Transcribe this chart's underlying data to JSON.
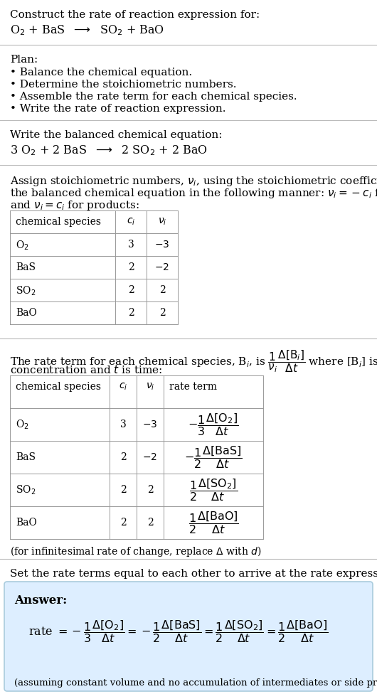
{
  "bg_color": "#ffffff",
  "text_color": "#000000",
  "title_line1": "Construct the rate of reaction expression for:",
  "reaction_unbalanced": "O$_2$ + BaS  $\\longrightarrow$  SO$_2$ + BaO",
  "plan_header": "Plan:",
  "plan_items": [
    "• Balance the chemical equation.",
    "• Determine the stoichiometric numbers.",
    "• Assemble the rate term for each chemical species.",
    "• Write the rate of reaction expression."
  ],
  "balanced_header": "Write the balanced chemical equation:",
  "reaction_balanced": "3 O$_2$ + 2 BaS  $\\longrightarrow$  2 SO$_2$ + 2 BaO",
  "stoich_intro_l1": "Assign stoichiometric numbers, $\\nu_i$, using the stoichiometric coefficients, $c_i$, from",
  "stoich_intro_l2": "the balanced chemical equation in the following manner: $\\nu_i = -c_i$ for reactants",
  "stoich_intro_l3": "and $\\nu_i = c_i$ for products:",
  "table1_headers": [
    "chemical species",
    "$c_i$",
    "$\\nu_i$"
  ],
  "table1_rows": [
    [
      "O$_2$",
      "3",
      "$-3$"
    ],
    [
      "BaS",
      "2",
      "$-2$"
    ],
    [
      "SO$_2$",
      "2",
      "2"
    ],
    [
      "BaO",
      "2",
      "2"
    ]
  ],
  "rate_intro_l1": "The rate term for each chemical species, B$_i$, is $\\dfrac{1}{\\nu_i}\\dfrac{\\Delta[\\mathrm{B}_i]}{\\Delta t}$ where [B$_i$] is the amount",
  "rate_intro_l2": "concentration and $t$ is time:",
  "table2_headers": [
    "chemical species",
    "$c_i$",
    "$\\nu_i$",
    "rate term"
  ],
  "table2_rows": [
    [
      "O$_2$",
      "3",
      "$-3$",
      "$-\\dfrac{1}{3}\\dfrac{\\Delta[\\mathrm{O_2}]}{\\Delta t}$"
    ],
    [
      "BaS",
      "2",
      "$-2$",
      "$-\\dfrac{1}{2}\\dfrac{\\Delta[\\mathrm{BaS}]}{\\Delta t}$"
    ],
    [
      "SO$_2$",
      "2",
      "2",
      "$\\dfrac{1}{2}\\dfrac{\\Delta[\\mathrm{SO_2}]}{\\Delta t}$"
    ],
    [
      "BaO",
      "2",
      "2",
      "$\\dfrac{1}{2}\\dfrac{\\Delta[\\mathrm{BaO}]}{\\Delta t}$"
    ]
  ],
  "delta_note": "(for infinitesimal rate of change, replace $\\Delta$ with $d$)",
  "set_equal_text": "Set the rate terms equal to each other to arrive at the rate expression:",
  "answer_box_color": "#ddeeff",
  "answer_border_color": "#aaccdd",
  "answer_label": "Answer:",
  "answer_rate": "rate $= -\\dfrac{1}{3}\\dfrac{\\Delta[\\mathrm{O_2}]}{\\Delta t} = -\\dfrac{1}{2}\\dfrac{\\Delta[\\mathrm{BaS}]}{\\Delta t} = \\dfrac{1}{2}\\dfrac{\\Delta[\\mathrm{SO_2}]}{\\Delta t} = \\dfrac{1}{2}\\dfrac{\\Delta[\\mathrm{BaO}]}{\\Delta t}$",
  "answer_footnote": "(assuming constant volume and no accumulation of intermediates or side products)"
}
